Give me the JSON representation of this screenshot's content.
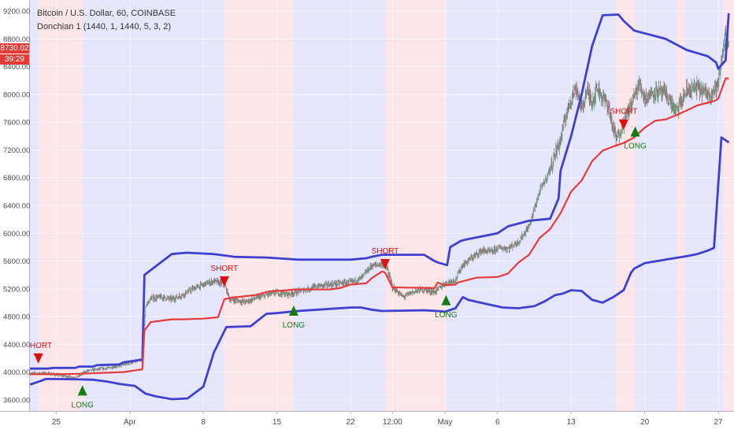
{
  "header": {
    "symbol_line": "Bitcoin / U.S. Dollar, 60, COINBASE",
    "indicator_line": "Donchian 1 (1440, 1, 1440, 5, 3, 2)"
  },
  "price_badges": {
    "last_price": "8730.02",
    "countdown": "39:29",
    "color": "#e53935"
  },
  "colors": {
    "upper_band": "#3f3fd1",
    "middle_line": "#e53b3b",
    "long_marker": "#137d13",
    "short_marker": "#e01010",
    "long_zone": "#e5e6fb",
    "short_zone": "#fbe5e9",
    "candles": "#7a7a7a"
  },
  "chart_data": {
    "type": "line",
    "title": "Bitcoin / U.S. Dollar, 60, COINBASE",
    "subtitle": "Donchian 1 (1440, 1, 1440, 5, 3, 2)",
    "xlabel": "",
    "ylabel": "",
    "ylim": [
      3440,
      9360
    ],
    "y_ticks": [
      "3600.00",
      "4000.00",
      "4400.00",
      "4800.00",
      "5200.00",
      "5600.00",
      "6000.00",
      "6400.00",
      "6800.00",
      "7200.00",
      "7600.00",
      "8000.00",
      "8400.00",
      "8800.00",
      "9200.00"
    ],
    "x_ticks": [
      {
        "label": "25",
        "day": 25
      },
      {
        "label": "Apr",
        "day": 32
      },
      {
        "label": "8",
        "day": 39
      },
      {
        "label": "15",
        "day": 46
      },
      {
        "label": "22",
        "day": 53
      },
      {
        "label": "12:00",
        "day": 57
      },
      {
        "label": "May",
        "day": 62
      },
      {
        "label": "6",
        "day": 67
      },
      {
        "label": "13",
        "day": 74
      },
      {
        "label": "20",
        "day": 81
      },
      {
        "label": "27",
        "day": 88
      }
    ],
    "x_range": [
      22.5,
      89.5
    ],
    "grid": true,
    "background_zones": [
      {
        "from": 22.5,
        "to": 23.3,
        "side": "long"
      },
      {
        "from": 23.3,
        "to": 27.5,
        "side": "short"
      },
      {
        "from": 27.5,
        "to": 41.0,
        "side": "long"
      },
      {
        "from": 41.0,
        "to": 47.6,
        "side": "short"
      },
      {
        "from": 47.6,
        "to": 56.3,
        "side": "long"
      },
      {
        "from": 56.3,
        "to": 62.1,
        "side": "short"
      },
      {
        "from": 62.1,
        "to": 78.3,
        "side": "long"
      },
      {
        "from": 78.3,
        "to": 80.1,
        "side": "short"
      },
      {
        "from": 80.1,
        "to": 84.1,
        "side": "long"
      },
      {
        "from": 84.1,
        "to": 84.8,
        "side": "short"
      },
      {
        "from": 84.8,
        "to": 88.5,
        "side": "long"
      },
      {
        "from": 88.5,
        "to": 89.5,
        "side": "short"
      }
    ],
    "series": [
      {
        "name": "",
        "role": "upper-band",
        "x": [
          22.5,
          24.2,
          24.7,
          26.8,
          27.2,
          28.5,
          28.9,
          31.0,
          31.4,
          33.2,
          33.4,
          36.0,
          37.4,
          40.0,
          42.0,
          42.2,
          45.0,
          46.0,
          48.0,
          53.0,
          54.5,
          55.0,
          56.0,
          60.0,
          61.0,
          61.3,
          62.2,
          62.5,
          63.5,
          64.0,
          67.0,
          68.0,
          70.0,
          72.0,
          72.8,
          73.0,
          74.0,
          75.0,
          76.0,
          77.0,
          78.5,
          79.0,
          80.0,
          83.0,
          85.0,
          87.0,
          87.8,
          88.0,
          88.7,
          89.0
        ],
        "y": [
          4050,
          4050,
          4060,
          4060,
          4080,
          4080,
          4100,
          4110,
          4140,
          4180,
          5400,
          5700,
          5720,
          5700,
          5660,
          5660,
          5650,
          5640,
          5620,
          5620,
          5640,
          5660,
          5690,
          5690,
          5600,
          5580,
          5540,
          5800,
          5890,
          5910,
          6000,
          6100,
          6180,
          6210,
          6500,
          6900,
          7400,
          8000,
          8700,
          9140,
          9150,
          9060,
          8920,
          8800,
          8640,
          8550,
          8460,
          8370,
          8490,
          9170
        ]
      },
      {
        "name": "",
        "role": "middle-line",
        "x": [
          22.5,
          24.7,
          27.2,
          28.9,
          31.4,
          33.2,
          33.4,
          34.0,
          36.0,
          37.0,
          39.0,
          40.4,
          41.0,
          42.0,
          42.2,
          44.0,
          45.2,
          46.0,
          47.0,
          47.6,
          51.0,
          52.0,
          53.0,
          54.5,
          55.0,
          56.0,
          56.2,
          56.3,
          57.0,
          61.0,
          61.3,
          62.0,
          63.0,
          63.2,
          65.0,
          67.0,
          68.0,
          69.0,
          70.0,
          71.0,
          72.0,
          73.0,
          74.0,
          75.0,
          76.0,
          77.0,
          78.0,
          79.0,
          80.0,
          81.0,
          82.0,
          83.0,
          84.0,
          85.0,
          86.0,
          87.0,
          87.7,
          88.0,
          88.7,
          89.0
        ],
        "y": [
          3970,
          3970,
          3975,
          3985,
          4000,
          4040,
          4600,
          4720,
          4760,
          4760,
          4770,
          4790,
          5050,
          5080,
          5080,
          5110,
          5160,
          5170,
          5180,
          5190,
          5190,
          5210,
          5260,
          5280,
          5350,
          5450,
          5440,
          5430,
          5220,
          5210,
          5290,
          5250,
          5260,
          5290,
          5360,
          5370,
          5420,
          5580,
          5690,
          5930,
          6060,
          6290,
          6600,
          6760,
          7040,
          7190,
          7250,
          7300,
          7380,
          7520,
          7620,
          7640,
          7700,
          7770,
          7840,
          7880,
          7910,
          7940,
          8230,
          8230
        ]
      },
      {
        "name": "",
        "role": "lower-band",
        "x": [
          22.5,
          23.5,
          24.0,
          24.7,
          27.2,
          28.5,
          29.0,
          30.0,
          31.0,
          32.5,
          33.5,
          34.5,
          36.0,
          37.5,
          39.0,
          40.0,
          41.2,
          41.5,
          43.5,
          45.0,
          46.0,
          48.0,
          53.0,
          54.0,
          55.0,
          56.0,
          60.0,
          61.2,
          62.0,
          63.0,
          63.7,
          64.2,
          66.0,
          67.5,
          69.0,
          70.5,
          71.5,
          72.5,
          73.2,
          74.0,
          75.0,
          76.0,
          77.0,
          78.0,
          79.0,
          79.7,
          80.0,
          81.0,
          83.0,
          85.0,
          86.0,
          87.0,
          87.6,
          88.3,
          89.0
        ],
        "y": [
          3820,
          3870,
          3900,
          3900,
          3895,
          3890,
          3880,
          3860,
          3830,
          3800,
          3690,
          3650,
          3610,
          3620,
          3790,
          4280,
          4650,
          4650,
          4660,
          4840,
          4850,
          4880,
          4930,
          4930,
          4900,
          4880,
          4890,
          4880,
          4870,
          4920,
          5080,
          5040,
          4980,
          4930,
          4920,
          4950,
          5020,
          5110,
          5130,
          5180,
          5170,
          5040,
          5000,
          5080,
          5180,
          5430,
          5490,
          5570,
          5620,
          5670,
          5700,
          5750,
          5790,
          7380,
          7310
        ]
      }
    ],
    "price_path": {
      "x": [
        22.5,
        24.0,
        25.5,
        26.8,
        28.0,
        30.0,
        31.5,
        32.5,
        33.2,
        33.5,
        34.0,
        35.0,
        36.0,
        37.0,
        38.0,
        39.0,
        40.0,
        41.0,
        41.5,
        43.0,
        44.5,
        46.0,
        47.0,
        48.0,
        49.0,
        50.0,
        51.0,
        52.0,
        53.0,
        54.0,
        55.0,
        56.0,
        56.5,
        57.0,
        58.0,
        59.0,
        60.0,
        61.0,
        62.0,
        63.0,
        63.6,
        64.5,
        65.5,
        66.5,
        67.0,
        68.0,
        69.0,
        70.0,
        71.0,
        71.8,
        72.5,
        73.0,
        73.5,
        74.0,
        74.5,
        75.0,
        75.5,
        76.0,
        76.5,
        77.0,
        77.5,
        78.0,
        78.3,
        79.0,
        79.8,
        80.5,
        81.0,
        82.0,
        83.0,
        84.0,
        84.5,
        85.0,
        86.0,
        87.0,
        87.5,
        88.0,
        88.5,
        88.7,
        89.0
      ],
      "y": [
        3980,
        3985,
        3950,
        3920,
        4020,
        4060,
        4110,
        4150,
        4180,
        4950,
        5060,
        5080,
        5050,
        5110,
        5200,
        5260,
        5310,
        5260,
        5050,
        5010,
        5090,
        5150,
        5120,
        5160,
        5200,
        5240,
        5260,
        5280,
        5290,
        5350,
        5530,
        5560,
        5480,
        5220,
        5080,
        5160,
        5190,
        5150,
        5280,
        5330,
        5530,
        5640,
        5750,
        5730,
        5790,
        5780,
        5880,
        6100,
        6600,
        6850,
        7150,
        7350,
        7700,
        7950,
        8100,
        7800,
        8050,
        7900,
        8100,
        7950,
        7850,
        7500,
        7350,
        7600,
        7900,
        8150,
        7950,
        8050,
        8000,
        7750,
        7900,
        8050,
        8100,
        8000,
        8050,
        8150,
        8700,
        8850,
        8730
      ],
      "seed": 7
    },
    "signals": [
      {
        "type": "SHORT",
        "x": 23.3,
        "y": 4190
      },
      {
        "type": "LONG",
        "x": 27.5,
        "y": 3730
      },
      {
        "type": "SHORT",
        "x": 41.0,
        "y": 5300
      },
      {
        "type": "LONG",
        "x": 47.6,
        "y": 4880
      },
      {
        "type": "SHORT",
        "x": 56.3,
        "y": 5550
      },
      {
        "type": "LONG",
        "x": 62.1,
        "y": 5030
      },
      {
        "type": "SHORT",
        "x": 79.0,
        "y": 7560
      },
      {
        "type": "LONG",
        "x": 80.1,
        "y": 7460
      }
    ]
  }
}
